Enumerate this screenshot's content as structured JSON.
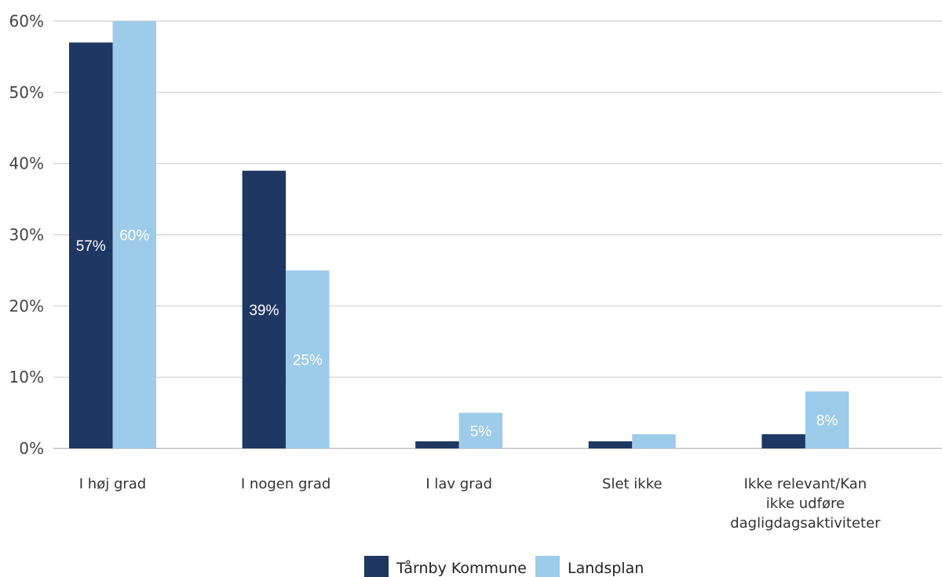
{
  "chart_data": {
    "type": "bar",
    "categories": [
      [
        "I høj grad"
      ],
      [
        "I nogen grad"
      ],
      [
        "I lav grad"
      ],
      [
        "Slet ikke"
      ],
      [
        "Ikke relevant/Kan",
        "ikke udføre",
        "dagligdagsaktiviteter"
      ]
    ],
    "series": [
      {
        "name": "Tårnby Kommune",
        "color": "#1f3763",
        "values": [
          57,
          39,
          1,
          1,
          2
        ],
        "labels": [
          "57%",
          "39%",
          "",
          "",
          ""
        ]
      },
      {
        "name": "Landsplan",
        "color": "#9dcbea",
        "values": [
          60,
          25,
          5,
          2,
          8
        ],
        "labels": [
          "60%",
          "25%",
          "5%",
          "",
          "8%"
        ]
      }
    ],
    "ylim": [
      0,
      60
    ],
    "yticks": [
      0,
      10,
      20,
      30,
      40,
      50,
      60
    ],
    "ytick_labels": [
      "0%",
      "10%",
      "20%",
      "30%",
      "40%",
      "50%",
      "60%"
    ],
    "grid": true,
    "legend_position": "bottom-center"
  }
}
